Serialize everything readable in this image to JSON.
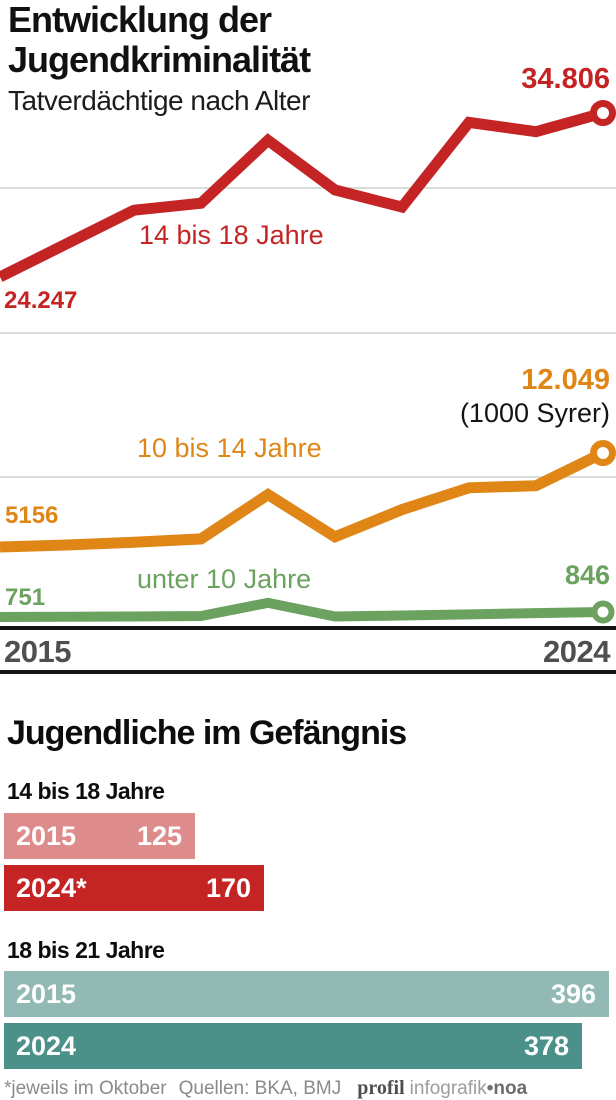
{
  "header": {
    "title_line1": "Entwicklung der",
    "title_line2": "Jugendkriminalität",
    "subtitle": "Tatverdächtige nach Alter"
  },
  "colors": {
    "red": "#c42423",
    "red_light": "#de8b8b",
    "orange": "#df8617",
    "green": "#6ba25f",
    "teal_light": "#92b9b3",
    "teal_dark": "#4b918a",
    "grid": "#d9ddda",
    "axis_black": "#141414",
    "year_label": "#4f4f4f",
    "footer_gray": "#8a8a8a"
  },
  "chart_data": [
    {
      "type": "line",
      "title": "Entwicklung der Jugendkriminalität",
      "subtitle": "Tatverdächtige nach Alter",
      "x": [
        2015,
        2016,
        2017,
        2018,
        2019,
        2020,
        2021,
        2022,
        2023,
        2024
      ],
      "x_axis_labels_shown": [
        "2015",
        "2024"
      ],
      "grid": true,
      "series": [
        {
          "name": "14 bis 18 Jahre",
          "color": "#c42423",
          "values": [
            24247,
            26400,
            28550,
            29000,
            33050,
            29850,
            28750,
            34200,
            33600,
            34806
          ],
          "first_label": "24.247",
          "last_label": "34.806"
        },
        {
          "name": "10 bis 14 Jahre",
          "color": "#df8617",
          "values": [
            5156,
            5300,
            5500,
            5750,
            9000,
            5900,
            7900,
            9500,
            9650,
            12049
          ],
          "first_label": "5156",
          "last_label": "12.049",
          "last_annotation": "(1000 Syrer)"
        },
        {
          "name": "unter 10 Jahre",
          "color": "#6ba25f",
          "values": [
            751,
            755,
            760,
            770,
            1020,
            760,
            780,
            800,
            825,
            846
          ],
          "first_label": "751",
          "last_label": "846"
        }
      ]
    },
    {
      "type": "bar",
      "title": "Jugendliche im Gefängnis",
      "groups": [
        {
          "label": "14 bis 18 Jahre",
          "bars": [
            {
              "label": "2015",
              "value": 125,
              "display": "125",
              "color": "#de8b8b"
            },
            {
              "label": "2024*",
              "value": 170,
              "display": "170",
              "color": "#c42423"
            }
          ]
        },
        {
          "label": "18 bis 21 Jahre",
          "bars": [
            {
              "label": "2015",
              "value": 396,
              "display": "396",
              "color": "#92b9b3"
            },
            {
              "label": "2024",
              "value": 378,
              "display": "378",
              "color": "#4b918a"
            }
          ]
        }
      ]
    }
  ],
  "footer": {
    "note": "*jeweils im Oktober",
    "sources": "Quellen: BKA, BMJ",
    "credit_brand": "profil",
    "credit_mid": "infografik",
    "credit_end": "•noa"
  }
}
